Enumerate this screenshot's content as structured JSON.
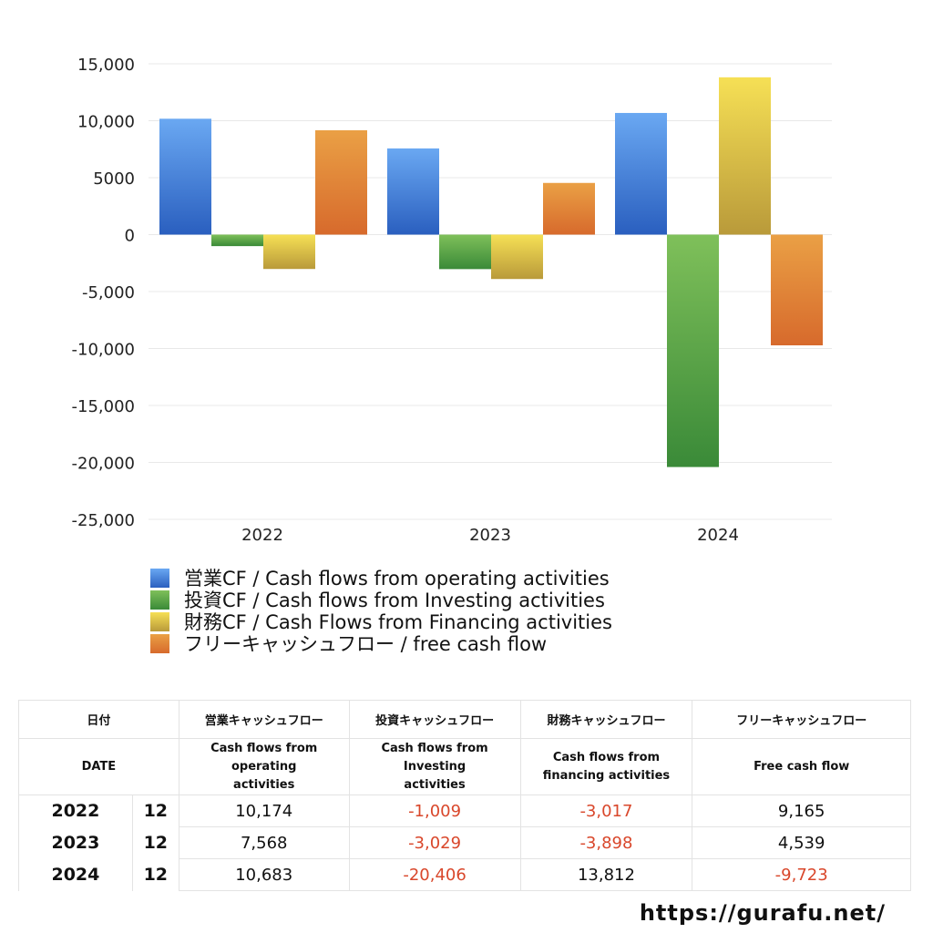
{
  "chart_data": {
    "type": "bar",
    "categories": [
      "2022",
      "2023",
      "2024"
    ],
    "series": [
      {
        "name": "営業CF / Cash flows from operating activities",
        "values": [
          10174,
          7568,
          10683
        ],
        "colors": [
          "#6aa8f2",
          "#2a5fbf"
        ]
      },
      {
        "name": "投資CF / Cash flows from Investing activities",
        "values": [
          -1009,
          -3029,
          -20406
        ],
        "colors": [
          "#7fc05a",
          "#3a8a38"
        ]
      },
      {
        "name": "財務CF / Cash Flows from Financing activities",
        "values": [
          -3017,
          -3898,
          13812
        ],
        "colors": [
          "#f6e055",
          "#b99a3a"
        ]
      },
      {
        "name": "フリーキャッシュフロー / free cash flow",
        "values": [
          9165,
          4539,
          -9723
        ],
        "colors": [
          "#eaa045",
          "#d76a2c"
        ]
      }
    ],
    "ylim": [
      -25000,
      15000
    ],
    "yticks": [
      15000,
      10000,
      5000,
      0,
      -5000,
      -10000,
      -15000,
      -20000,
      -25000
    ],
    "ytick_labels": [
      "15,000",
      "10,000",
      "5000",
      "0",
      "-5,000",
      "-10,000",
      "-15,000",
      "-20,000",
      "-25,000"
    ],
    "grid": true,
    "legend": "bottom"
  },
  "table": {
    "header_jp": [
      "日付",
      "営業キャッシュフロー",
      "投資キャッシュフロー",
      "財務キャッシュフロー",
      "フリーキャッシュフロー"
    ],
    "header_en": [
      "DATE",
      "Cash flows from operating activities",
      "Cash flows from Investing activities",
      "Cash flows from financing activities",
      "Free cash flow"
    ],
    "rows": [
      {
        "year": "2022",
        "month": "12",
        "cells": [
          "10,174",
          "-1,009",
          "-3,017",
          "9,165"
        ]
      },
      {
        "year": "2023",
        "month": "12",
        "cells": [
          "7,568",
          "-3,029",
          "-3,898",
          "4,539"
        ]
      },
      {
        "year": "2024",
        "month": "12",
        "cells": [
          "10,683",
          "-20,406",
          "13,812",
          "-9,723"
        ]
      }
    ]
  },
  "url": "https://gurafu.net/"
}
